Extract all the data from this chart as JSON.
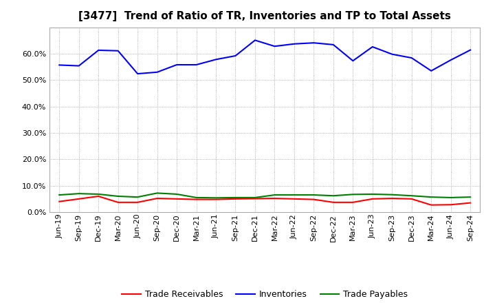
{
  "title": "[3477]  Trend of Ratio of TR, Inventories and TP to Total Assets",
  "x_labels": [
    "Jun-19",
    "Sep-19",
    "Dec-19",
    "Mar-20",
    "Jun-20",
    "Sep-20",
    "Dec-20",
    "Mar-21",
    "Jun-21",
    "Sep-21",
    "Dec-21",
    "Mar-22",
    "Jun-22",
    "Sep-22",
    "Dec-22",
    "Mar-23",
    "Jun-23",
    "Sep-23",
    "Dec-23",
    "Mar-24",
    "Jun-24",
    "Sep-24"
  ],
  "inventories": [
    0.557,
    0.554,
    0.613,
    0.611,
    0.524,
    0.53,
    0.558,
    0.558,
    0.578,
    0.592,
    0.651,
    0.628,
    0.637,
    0.641,
    0.634,
    0.573,
    0.626,
    0.598,
    0.584,
    0.535,
    0.576,
    0.614
  ],
  "trade_receivables": [
    0.04,
    0.05,
    0.06,
    0.037,
    0.037,
    0.052,
    0.05,
    0.048,
    0.048,
    0.05,
    0.051,
    0.052,
    0.05,
    0.048,
    0.037,
    0.037,
    0.05,
    0.052,
    0.05,
    0.027,
    0.028,
    0.035
  ],
  "trade_payables": [
    0.065,
    0.07,
    0.068,
    0.06,
    0.057,
    0.072,
    0.068,
    0.055,
    0.054,
    0.055,
    0.055,
    0.065,
    0.065,
    0.065,
    0.062,
    0.067,
    0.068,
    0.066,
    0.062,
    0.057,
    0.055,
    0.057
  ],
  "line_color_inventories": "#0000FF",
  "line_color_trade_receivables": "#FF0000",
  "line_color_trade_payables": "#008000",
  "ylim": [
    0.0,
    0.7
  ],
  "yticks": [
    0.0,
    0.1,
    0.2,
    0.3,
    0.4,
    0.5,
    0.6
  ],
  "background_color": "#FFFFFF",
  "grid_color": "#999999",
  "legend_labels": [
    "Trade Receivables",
    "Inventories",
    "Trade Payables"
  ],
  "title_fontsize": 11,
  "tick_fontsize": 8,
  "legend_fontsize": 9
}
